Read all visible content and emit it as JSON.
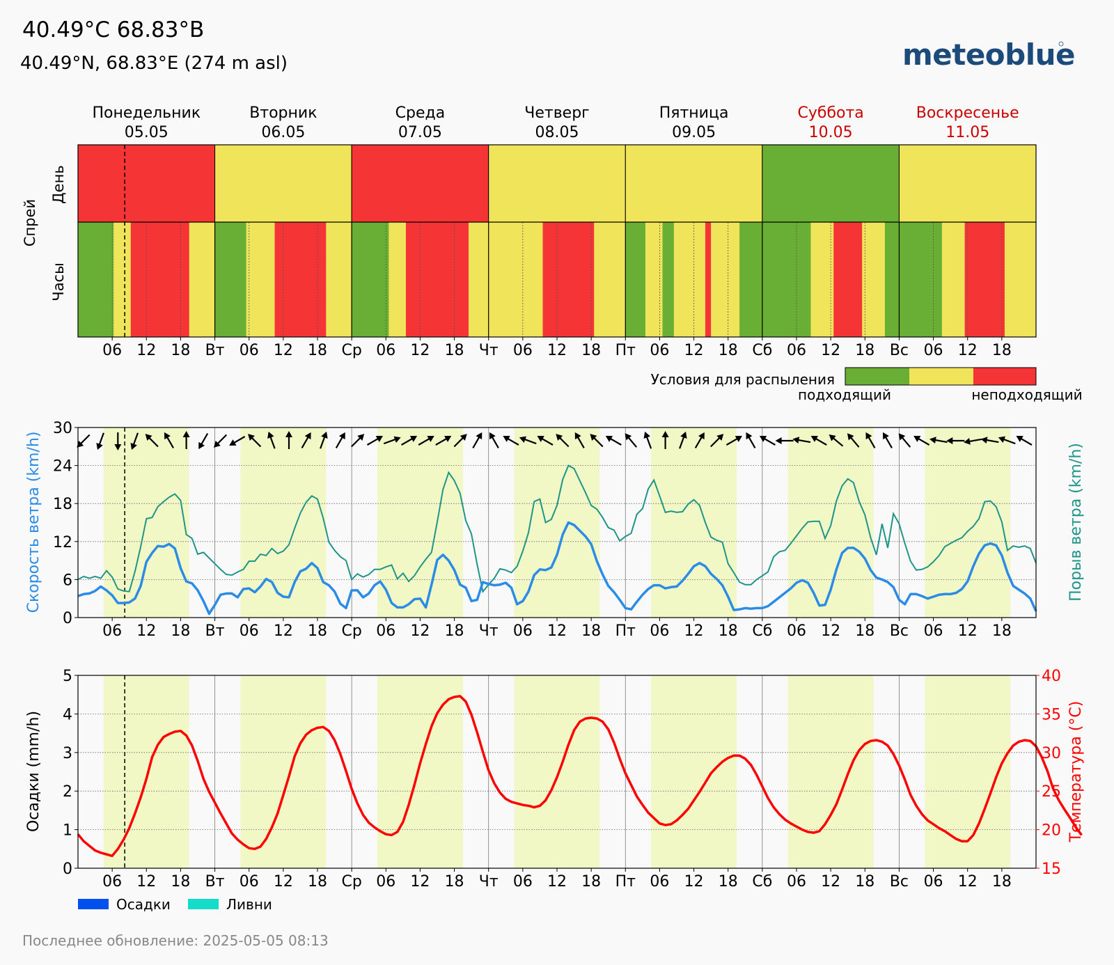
{
  "header": {
    "title": "40.49°C 68.83°B",
    "subtitle": "40.49°N, 68.83°E (274 m asl)",
    "logo": "meteoblue",
    "last_update": "Последнее обновление: 2025-05-05 08:13"
  },
  "days": [
    {
      "name": "Понедельник",
      "date": "05.05",
      "weekend": false
    },
    {
      "name": "Вторник",
      "date": "06.05",
      "weekend": false
    },
    {
      "name": "Среда",
      "date": "07.05",
      "weekend": false
    },
    {
      "name": "Четверг",
      "date": "08.05",
      "weekend": false
    },
    {
      "name": "Пятница",
      "date": "09.05",
      "weekend": false
    },
    {
      "name": "Суббота",
      "date": "10.05",
      "weekend": true
    },
    {
      "name": "Воскресенье",
      "date": "11.05",
      "weekend": true
    }
  ],
  "tick_labels": [
    [
      "",
      "06",
      "12",
      "18"
    ],
    [
      "Вт",
      "06",
      "12",
      "18"
    ],
    [
      "Ср",
      "06",
      "12",
      "18"
    ],
    [
      "Чт",
      "06",
      "12",
      "18"
    ],
    [
      "Пт",
      "06",
      "12",
      "18"
    ],
    [
      "Сб",
      "06",
      "12",
      "18"
    ],
    [
      "Вс",
      "06",
      "12",
      "18"
    ]
  ],
  "colors": {
    "good": "#6aaf35",
    "medium": "#efe45a",
    "bad": "#f53535",
    "wind": "#2b8ce8",
    "gust": "#1f9589",
    "temp": "#ff0000",
    "weekend": "#cc0000",
    "daylight": "#f1f8c6",
    "precip": "#0050f0",
    "showers": "#15dcc8",
    "logo": "#1c4a7a"
  },
  "spray": {
    "title": "Спрей",
    "row_day": "День",
    "row_hours": "Часы",
    "legend_title": "Условия для распыления",
    "legend_good": "подходящий",
    "legend_bad": "неподходящий"
  },
  "wind": {
    "ylabel_left": "Скорость ветра (km/h)",
    "ylabel_right": "Порыв ветра (km/h)"
  },
  "precip_panel": {
    "ylabel_left": "Осадки (mm/h)",
    "ylabel_right": "Температура (°C)",
    "legend_precip": "Осадки",
    "legend_showers": "Ливни"
  },
  "chart_data": [
    {
      "type": "heatmap",
      "title": "Спрей",
      "rows": [
        "День",
        "Часы"
      ],
      "categories": [
        "bad",
        "medium",
        "good"
      ],
      "daily": [
        "bad",
        "medium",
        "bad",
        "medium",
        "medium",
        "good",
        "medium"
      ],
      "hourly": [
        [
          "good",
          0,
          6.25
        ],
        [
          "medium",
          6.25,
          9.25
        ],
        [
          "bad",
          9.25,
          19.5
        ],
        [
          "medium",
          19.5,
          24
        ],
        [
          "good",
          24,
          29.5
        ],
        [
          "medium",
          29.5,
          34.5
        ],
        [
          "bad",
          34.5,
          43.5
        ],
        [
          "medium",
          43.5,
          48
        ],
        [
          "good",
          48,
          54.5
        ],
        [
          "medium",
          54.5,
          57.5
        ],
        [
          "bad",
          57.5,
          68.5
        ],
        [
          "medium",
          68.5,
          72
        ],
        [
          "medium",
          72,
          81.5
        ],
        [
          "bad",
          81.5,
          90.5
        ],
        [
          "medium",
          90.5,
          96
        ],
        [
          "good",
          96,
          99.5
        ],
        [
          "medium",
          99.5,
          102.5
        ],
        [
          "good",
          102.5,
          104.5
        ],
        [
          "medium",
          104.5,
          110
        ],
        [
          "bad",
          110,
          111
        ],
        [
          "medium",
          111,
          116
        ],
        [
          "good",
          116,
          120
        ],
        [
          "good",
          120,
          128.5
        ],
        [
          "medium",
          128.5,
          132.5
        ],
        [
          "bad",
          132.5,
          137.5
        ],
        [
          "medium",
          137.5,
          141.5
        ],
        [
          "good",
          141.5,
          144
        ],
        [
          "good",
          144,
          151.5
        ],
        [
          "medium",
          151.5,
          155.5
        ],
        [
          "bad",
          155.5,
          162.5
        ],
        [
          "medium",
          162.5,
          168
        ]
      ],
      "now_hour": 8.2
    },
    {
      "type": "line",
      "title": "",
      "x_start": "2025-05-05 00:00",
      "x_step_hours": 1,
      "ylabel": "Скорость ветра (km/h)",
      "y2label": "Порыв ветра (km/h)",
      "ylim": [
        0,
        30
      ],
      "yticks": [
        0,
        6,
        12,
        18,
        24,
        30
      ],
      "grid": true,
      "series": [
        {
          "name": "Скорость ветра (km/h)",
          "values": [
            3.4,
            3.7,
            3.8,
            4.2,
            4.9,
            4.3,
            3.5,
            2.3,
            2.3,
            2.4,
            3.0,
            5.0,
            8.8,
            10.2,
            11.3,
            11.2,
            11.6,
            10.9,
            7.8,
            5.7,
            5.4,
            4.3,
            2.6,
            0.6,
            2.0,
            3.6,
            3.8,
            3.8,
            3.2,
            4.5,
            4.6,
            4.0,
            4.9,
            6.1,
            5.6,
            3.9,
            3.3,
            3.2,
            5.6,
            7.3,
            7.7,
            8.6,
            7.8,
            5.6,
            5.1,
            4.1,
            2.2,
            1.5,
            4.3,
            4.3,
            3.2,
            3.8,
            5.1,
            5.7,
            4.4,
            2.3,
            1.6,
            1.6,
            2.1,
            2.9,
            3.0,
            1.6,
            5.2,
            9.1,
            9.9,
            9.0,
            7.5,
            5.2,
            4.7,
            2.6,
            2.8,
            5.6,
            5.3,
            5.1,
            5.2,
            5.5,
            4.7,
            2.1,
            2.6,
            4.1,
            6.7,
            7.6,
            7.5,
            7.9,
            9.9,
            13.1,
            15.0,
            14.6,
            13.7,
            12.8,
            11.6,
            8.9,
            6.8,
            5.0,
            4.0,
            2.8,
            1.5,
            1.3,
            2.5,
            3.6,
            4.5,
            5.1,
            5.1,
            4.6,
            4.8,
            4.9,
            5.8,
            6.9,
            8.1,
            8.6,
            8.1,
            6.9,
            6.1,
            5.1,
            3.3,
            1.2,
            1.3,
            1.5,
            1.4,
            1.5,
            1.5,
            1.8,
            2.5,
            3.2,
            3.9,
            4.6,
            5.5,
            5.9,
            5.5,
            3.9,
            1.9,
            2.0,
            4.4,
            7.6,
            10.2,
            11.0,
            11.0,
            10.4,
            9.3,
            7.5,
            6.3,
            6.0,
            5.6,
            4.8,
            2.8,
            2.1,
            3.7,
            3.7,
            3.4,
            3.0,
            3.3,
            3.6,
            3.7,
            3.7,
            3.9,
            4.5,
            5.7,
            8.1,
            10.1,
            11.4,
            11.7,
            11.4,
            9.8,
            7.1,
            5.0,
            4.4,
            3.8,
            3.0,
            1.0
          ]
        },
        {
          "name": "Порыв ветра (km/h)",
          "values": [
            6.0,
            6.5,
            6.2,
            6.5,
            6.2,
            7.4,
            6.4,
            4.5,
            4.2,
            4.1,
            7.3,
            11.2,
            15.6,
            15.8,
            17.5,
            18.3,
            19.0,
            19.5,
            18.5,
            13.1,
            12.5,
            10.0,
            10.3,
            9.4,
            8.5,
            7.6,
            6.8,
            6.7,
            7.2,
            7.6,
            8.9,
            8.9,
            10.0,
            9.8,
            10.9,
            10.1,
            10.5,
            11.5,
            14.1,
            16.5,
            18.2,
            19.2,
            18.7,
            15.7,
            11.9,
            10.6,
            9.6,
            9.0,
            6.0,
            6.9,
            6.4,
            6.8,
            7.6,
            7.6,
            8.0,
            8.3,
            6.1,
            7.0,
            5.7,
            6.6,
            8.0,
            9.2,
            10.3,
            15.1,
            20.2,
            22.9,
            21.6,
            19.6,
            15.3,
            13.2,
            8.4,
            4.1,
            5.2,
            6.2,
            7.7,
            7.5,
            7.1,
            8.1,
            10.5,
            13.4,
            18.3,
            18.7,
            15.0,
            15.5,
            17.7,
            21.8,
            24.0,
            23.5,
            21.6,
            19.7,
            17.7,
            17.1,
            15.8,
            14.2,
            13.8,
            12.1,
            12.8,
            13.3,
            16.3,
            17.2,
            20.3,
            21.7,
            19.2,
            16.6,
            16.8,
            16.6,
            16.7,
            17.9,
            18.6,
            17.7,
            15.0,
            12.7,
            12.2,
            11.9,
            8.5,
            7.1,
            5.6,
            5.2,
            5.2,
            6.0,
            6.6,
            7.2,
            9.6,
            10.4,
            10.6,
            11.7,
            12.9,
            14.1,
            15.1,
            15.2,
            15.2,
            12.5,
            14.5,
            18.4,
            20.8,
            21.9,
            21.3,
            18.3,
            16.2,
            12.6,
            9.9,
            14.8,
            11.0,
            16.4,
            14.8,
            11.7,
            8.9,
            7.5,
            7.6,
            8.0,
            8.8,
            9.8,
            11.2,
            11.7,
            12.2,
            12.6,
            13.6,
            14.4,
            15.6,
            18.3,
            18.4,
            17.5,
            15.1,
            10.6,
            11.3,
            11.1,
            11.3,
            10.9,
            8.6
          ]
        }
      ],
      "direction_label": "wind-direction-arrows"
    },
    {
      "type": "line",
      "title": "",
      "x_start": "2025-05-05 00:00",
      "x_step_hours": 1,
      "ylabel": "Осадки (mm/h)",
      "y2label": "Температура (°C)",
      "ylim": [
        0,
        5
      ],
      "yticks": [
        0,
        1,
        2,
        3,
        4,
        5
      ],
      "y2lim": [
        15,
        40
      ],
      "y2ticks": [
        15,
        20,
        25,
        30,
        35,
        40
      ],
      "grid": true,
      "series": [
        {
          "name": "Температура (°C)",
          "values": [
            19.4,
            18.5,
            17.9,
            17.3,
            17.0,
            16.8,
            16.6,
            17.5,
            18.7,
            20.2,
            22.1,
            24.2,
            26.6,
            29.4,
            31.0,
            32.0,
            32.4,
            32.7,
            32.8,
            32.2,
            30.9,
            28.9,
            26.6,
            24.9,
            23.5,
            22.1,
            20.8,
            19.5,
            18.7,
            18.1,
            17.6,
            17.5,
            17.8,
            18.8,
            20.3,
            22.1,
            24.5,
            26.9,
            29.5,
            31.2,
            32.3,
            32.9,
            33.2,
            33.3,
            32.8,
            31.6,
            29.8,
            27.6,
            25.3,
            23.4,
            21.9,
            20.9,
            20.3,
            19.8,
            19.4,
            19.3,
            19.7,
            21.0,
            23.2,
            25.8,
            28.6,
            31.1,
            33.4,
            35.1,
            36.2,
            36.9,
            37.2,
            37.3,
            36.6,
            34.9,
            32.6,
            30.1,
            27.7,
            26.0,
            24.8,
            24.0,
            23.6,
            23.4,
            23.2,
            23.1,
            22.9,
            23.1,
            23.8,
            25.1,
            26.8,
            28.8,
            31.0,
            32.9,
            34.0,
            34.4,
            34.5,
            34.4,
            34.0,
            33.0,
            31.3,
            29.2,
            27.3,
            25.8,
            24.3,
            23.2,
            22.2,
            21.5,
            20.8,
            20.6,
            20.7,
            21.2,
            21.9,
            22.7,
            23.8,
            24.9,
            26.1,
            27.3,
            28.1,
            28.8,
            29.3,
            29.6,
            29.6,
            29.2,
            28.4,
            27.1,
            25.6,
            24.1,
            22.9,
            22.0,
            21.3,
            20.8,
            20.4,
            20.0,
            19.7,
            19.6,
            19.8,
            20.7,
            21.9,
            23.3,
            25.2,
            27.2,
            29.0,
            30.3,
            31.1,
            31.5,
            31.6,
            31.4,
            30.9,
            29.8,
            28.3,
            26.5,
            24.5,
            23.1,
            22.0,
            21.2,
            20.7,
            20.2,
            19.8,
            19.3,
            18.8,
            18.5,
            18.5,
            19.3,
            20.8,
            22.7,
            24.7,
            26.8,
            28.6,
            29.9,
            30.9,
            31.4,
            31.6,
            31.5,
            30.8,
            29.4,
            27.6,
            25.3,
            23.8,
            22.6,
            21.5,
            20.3,
            19.3
          ]
        },
        {
          "name": "Осадки",
          "values": []
        },
        {
          "name": "Ливни",
          "values": []
        }
      ]
    }
  ]
}
